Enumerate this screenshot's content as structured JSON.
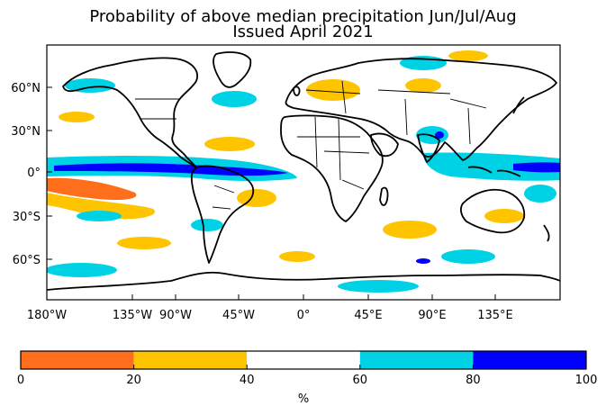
{
  "title_line1": "Probability of above median precipitation Jun/Jul/Aug",
  "title_line2": "Issued April 2021",
  "lat_ticks": [
    "60°N",
    "30°N",
    "0°",
    "30°S",
    "60°S"
  ],
  "lon_ticks": [
    "180°W",
    "135°W",
    "90°W",
    "45°W",
    "0°",
    "45°E",
    "90°E",
    "135°E"
  ],
  "colorbar": {
    "bins": [
      {
        "from": 0,
        "to": 20,
        "color": "#ff6e1a"
      },
      {
        "from": 20,
        "to": 40,
        "color": "#ffc400"
      },
      {
        "from": 40,
        "to": 60,
        "color": "#ffffff"
      },
      {
        "from": 60,
        "to": 80,
        "color": "#00d2e6"
      },
      {
        "from": 80,
        "to": 100,
        "color": "#0000ff"
      }
    ],
    "tick_labels": [
      "0",
      "20",
      "40",
      "60",
      "80",
      "100"
    ],
    "unit_label": "%"
  }
}
